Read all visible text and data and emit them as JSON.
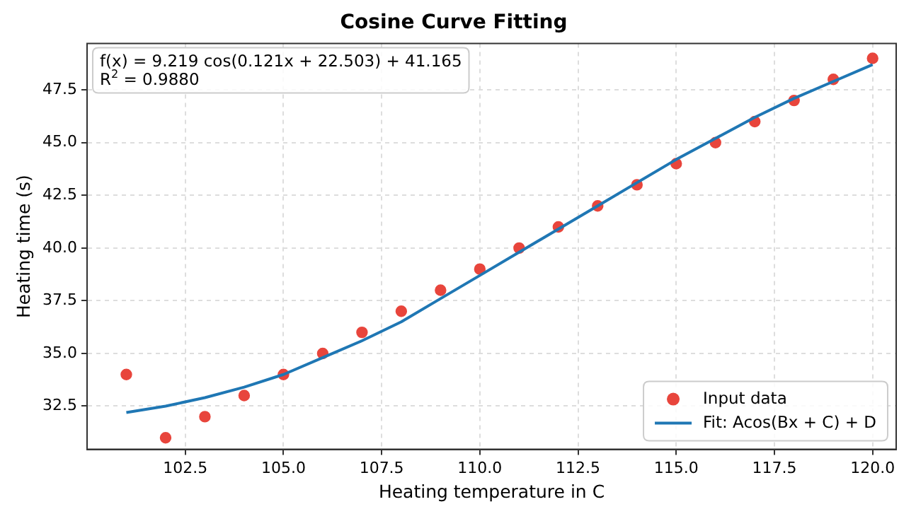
{
  "chart_data": {
    "type": "scatter",
    "title": "Cosine Curve Fitting",
    "xlabel": "Heating temperature in C",
    "ylabel": "Heating time (s)",
    "xlim": [
      100.0,
      120.6
    ],
    "xticks": [
      {
        "value": 102.5,
        "label": "102.5"
      },
      {
        "value": 105,
        "label": "105.0"
      },
      {
        "value": 107.5,
        "label": "107.5"
      },
      {
        "value": 110,
        "label": "110.0"
      },
      {
        "value": 112.5,
        "label": "112.5"
      },
      {
        "value": 115,
        "label": "115.0"
      },
      {
        "value": 117.5,
        "label": "117.5"
      },
      {
        "value": 120,
        "label": "120.0"
      }
    ],
    "ylim": [
      30.45,
      49.7
    ],
    "yticks": [
      {
        "value": 32.5,
        "label": "32.5"
      },
      {
        "value": 35,
        "label": "35.0"
      },
      {
        "value": 37.5,
        "label": "37.5"
      },
      {
        "value": 40,
        "label": "40.0"
      },
      {
        "value": 42.5,
        "label": "42.5"
      },
      {
        "value": 45,
        "label": "45.0"
      },
      {
        "value": 47.5,
        "label": "47.5"
      }
    ],
    "grid": true,
    "legend": "bottom right",
    "annotations": [
      "f(x) = 9.219 cos(0.121x + 22.503) + 41.165",
      "R$^{2}$ = 0.9880"
    ],
    "series": [
      {
        "name": "Input data",
        "marker": "circle",
        "color": "#e8453c",
        "x": [
          101,
          102,
          103,
          104,
          105,
          106,
          107,
          108,
          109,
          110,
          111,
          112,
          113,
          114,
          115,
          116,
          117,
          118,
          119,
          120
        ],
        "values": [
          34,
          31,
          32,
          33,
          34,
          35,
          36,
          37,
          38,
          39,
          40,
          41,
          42,
          43,
          44,
          45,
          46,
          47,
          48,
          49
        ]
      },
      {
        "name": "Fit: Acos(Bx + C) + D",
        "type": "line",
        "color": "#1f77b4",
        "x": [
          101,
          102,
          103,
          104,
          105,
          106,
          107,
          108,
          109,
          110,
          111,
          112,
          113,
          114,
          115,
          116,
          117,
          118,
          119,
          120
        ],
        "values": [
          32.2,
          32.5,
          32.9,
          33.4,
          34.0,
          34.8,
          35.6,
          36.5,
          37.6,
          38.7,
          39.8,
          40.9,
          42.0,
          43.1,
          44.2,
          45.2,
          46.2,
          47.1,
          47.9,
          48.7
        ]
      }
    ]
  }
}
